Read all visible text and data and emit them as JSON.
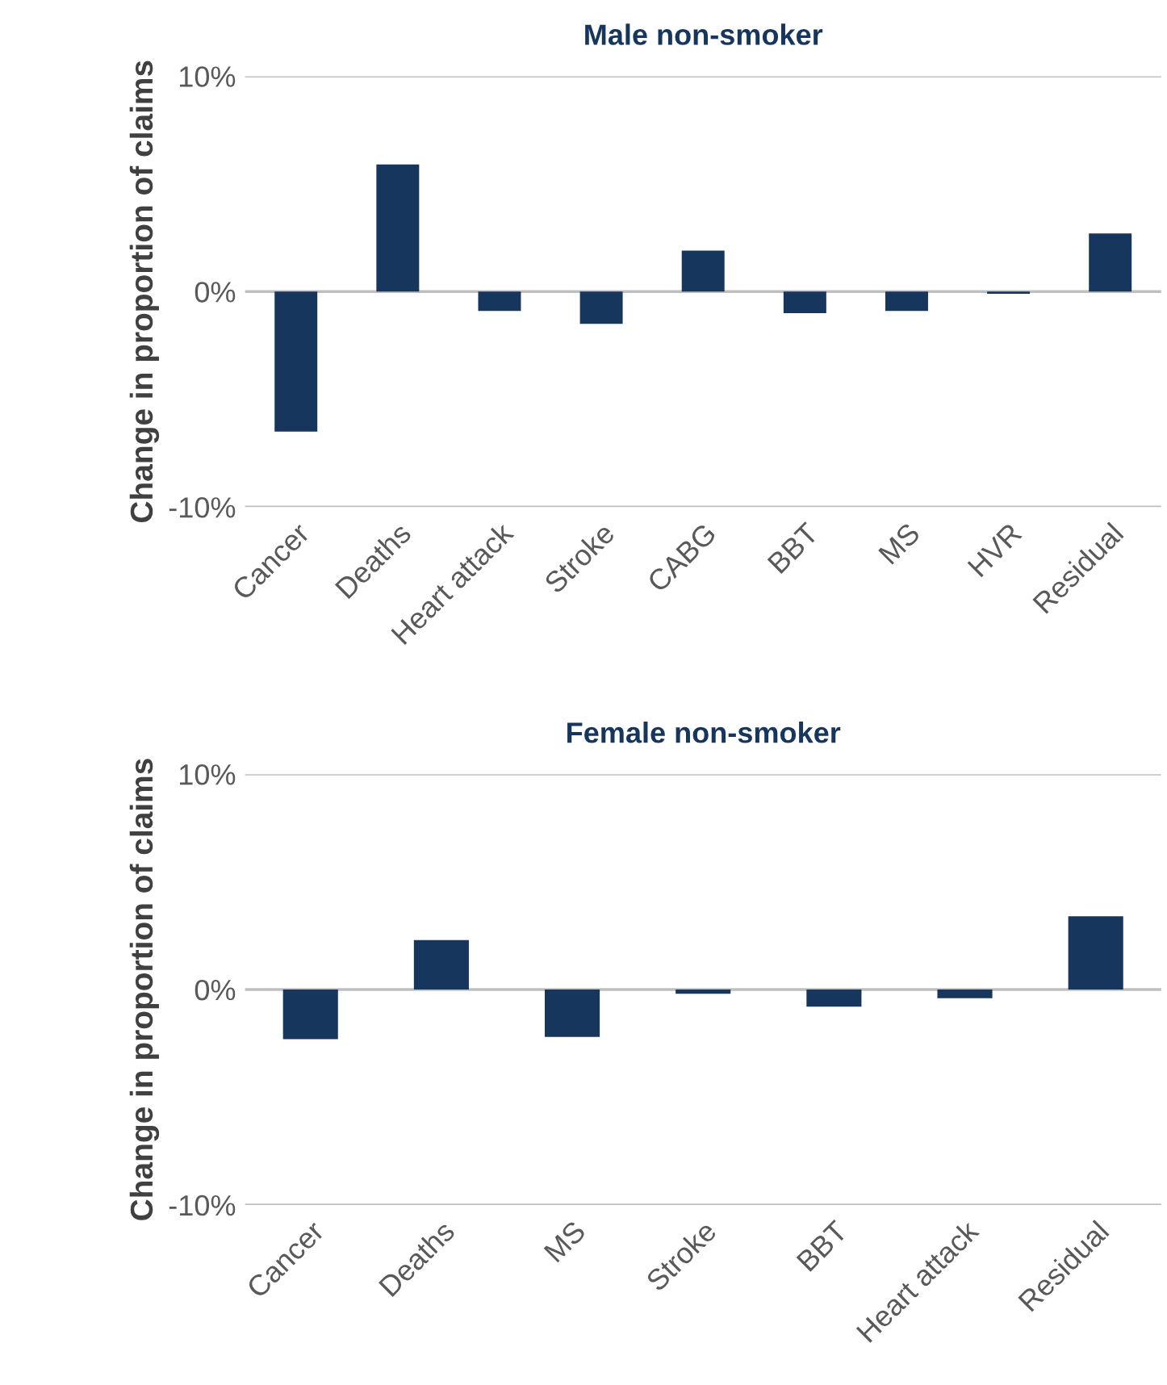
{
  "chart_data": [
    {
      "type": "bar",
      "title": "Male non-smoker",
      "ylabel": "Change in proportion of claims",
      "categories": [
        "Cancer",
        "Deaths",
        "Heart attack",
        "Stroke",
        "CABG",
        "BBT",
        "MS",
        "HVR",
        "Residual"
      ],
      "values": [
        -6.5,
        5.9,
        -0.9,
        -1.5,
        1.9,
        -1.0,
        -0.9,
        -0.1,
        2.7
      ],
      "color": "#17365d",
      "ylim": [
        -10,
        10
      ],
      "yticks": [
        {
          "value": -10,
          "label": "-10%"
        },
        {
          "value": 0,
          "label": "0%"
        },
        {
          "value": 10,
          "label": "10%"
        }
      ],
      "grid": "y",
      "legend": false
    },
    {
      "type": "bar",
      "title": "Female non-smoker",
      "ylabel": "Change in proportion of claims",
      "categories": [
        "Cancer",
        "Deaths",
        "MS",
        "Stroke",
        "BBT",
        "Heart attack",
        "Residual"
      ],
      "values": [
        -2.3,
        2.3,
        -2.2,
        -0.2,
        -0.8,
        -0.4,
        3.4
      ],
      "color": "#17365d",
      "ylim": [
        -10,
        10
      ],
      "yticks": [
        {
          "value": -10,
          "label": "-10%"
        },
        {
          "value": 0,
          "label": "0%"
        },
        {
          "value": 10,
          "label": "10%"
        }
      ],
      "grid": "y",
      "legend": false
    }
  ]
}
